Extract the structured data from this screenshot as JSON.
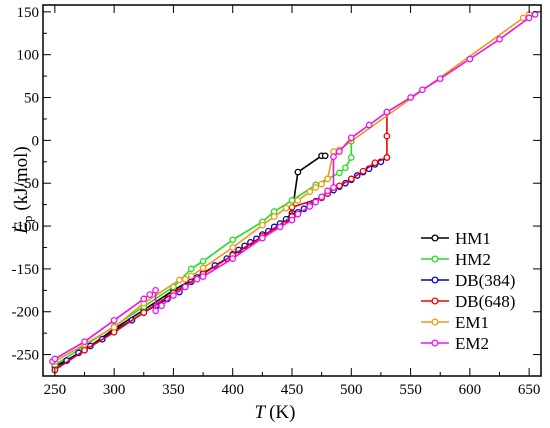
{
  "chart_data": {
    "type": "line",
    "title": "",
    "xlabel": "T",
    "xlabel_unit": "(K)",
    "ylabel": "E",
    "ylabel_sub": "p",
    "ylabel_unit": "(kJ/mol)",
    "xlim": [
      240,
      660
    ],
    "ylim": [
      -275,
      158
    ],
    "xticks": [
      250,
      300,
      350,
      400,
      450,
      500,
      550,
      600,
      650
    ],
    "yticks": [
      -250,
      -200,
      -150,
      -100,
      -50,
      0,
      50,
      100,
      150
    ],
    "legend_position": "bottom-right",
    "series": [
      {
        "name": "HM1",
        "color": "#000000",
        "points": [
          [
            250,
            -264
          ],
          [
            275,
            -245
          ],
          [
            300,
            -220
          ],
          [
            325,
            -198
          ],
          [
            350,
            -175
          ],
          [
            375,
            -155
          ],
          [
            400,
            -134
          ],
          [
            425,
            -112
          ],
          [
            440,
            -98
          ],
          [
            450,
            -85
          ],
          [
            455,
            -37
          ],
          [
            475,
            -18
          ],
          [
            478,
            -18
          ]
        ]
      },
      {
        "name": "HM2",
        "color": "#22dd22",
        "points": [
          [
            250,
            -262
          ],
          [
            275,
            -240
          ],
          [
            300,
            -217
          ],
          [
            325,
            -194
          ],
          [
            350,
            -171
          ],
          [
            365,
            -150
          ],
          [
            375,
            -141
          ],
          [
            400,
            -116
          ],
          [
            425,
            -95
          ],
          [
            435,
            -83
          ],
          [
            450,
            -70
          ],
          [
            470,
            -52
          ],
          [
            480,
            -45
          ],
          [
            490,
            -38
          ],
          [
            495,
            -32
          ],
          [
            500,
            -20
          ],
          [
            500,
            -1
          ]
        ]
      },
      {
        "name": "DB(384)",
        "color": "#0000cc",
        "points": [
          [
            250,
            -268
          ],
          [
            260,
            -257
          ],
          [
            270,
            -248
          ],
          [
            280,
            -240
          ],
          [
            290,
            -232
          ],
          [
            300,
            -222
          ],
          [
            315,
            -210
          ],
          [
            325,
            -201
          ],
          [
            335,
            -193
          ],
          [
            345,
            -185
          ],
          [
            355,
            -177
          ],
          [
            360,
            -171
          ],
          [
            365,
            -165
          ],
          [
            370,
            -160
          ],
          [
            375,
            -156
          ],
          [
            385,
            -146
          ],
          [
            395,
            -138
          ],
          [
            400,
            -133
          ],
          [
            405,
            -128
          ],
          [
            410,
            -123
          ],
          [
            415,
            -119
          ],
          [
            420,
            -115
          ],
          [
            425,
            -110
          ],
          [
            430,
            -106
          ],
          [
            435,
            -101
          ],
          [
            440,
            -97
          ],
          [
            445,
            -92
          ],
          [
            450,
            -88
          ],
          [
            455,
            -84
          ],
          [
            460,
            -80
          ],
          [
            465,
            -75
          ],
          [
            470,
            -71
          ],
          [
            475,
            -67
          ],
          [
            480,
            -62
          ],
          [
            485,
            -58
          ],
          [
            490,
            -54
          ],
          [
            495,
            -50
          ],
          [
            500,
            -46
          ],
          [
            505,
            -41
          ],
          [
            510,
            -37
          ],
          [
            515,
            -33
          ],
          [
            520,
            -28
          ],
          [
            525,
            -25
          ],
          [
            530,
            -20
          ]
        ]
      },
      {
        "name": "DB(648)",
        "color": "#ee0000",
        "points": [
          [
            250,
            -268
          ],
          [
            275,
            -245
          ],
          [
            300,
            -224
          ],
          [
            325,
            -201
          ],
          [
            350,
            -178
          ],
          [
            375,
            -156
          ],
          [
            400,
            -134
          ],
          [
            425,
            -112
          ],
          [
            450,
            -89
          ],
          [
            450,
            -78
          ],
          [
            475,
            -67
          ],
          [
            480,
            -62
          ],
          [
            490,
            -53
          ],
          [
            500,
            -45
          ],
          [
            510,
            -36
          ],
          [
            520,
            -26
          ],
          [
            530,
            -20
          ],
          [
            530,
            5
          ],
          [
            530,
            33
          ]
        ]
      },
      {
        "name": "EM1",
        "color": "#ee9911",
        "points": [
          [
            250,
            -258
          ],
          [
            275,
            -238
          ],
          [
            300,
            -218
          ],
          [
            325,
            -190
          ],
          [
            355,
            -163
          ],
          [
            360,
            -162
          ],
          [
            365,
            -158
          ],
          [
            375,
            -149
          ],
          [
            400,
            -125
          ],
          [
            425,
            -99
          ],
          [
            435,
            -89
          ],
          [
            445,
            -79
          ],
          [
            455,
            -70
          ],
          [
            465,
            -60
          ],
          [
            470,
            -55
          ],
          [
            475,
            -51
          ],
          [
            480,
            -45
          ],
          [
            485,
            -13
          ],
          [
            490,
            -11
          ],
          [
            645,
            143
          ],
          [
            650,
            147
          ]
        ]
      },
      {
        "name": "EM2",
        "color": "#ee11ee",
        "points": [
          [
            248,
            -258
          ],
          [
            250,
            -255
          ],
          [
            275,
            -235
          ],
          [
            300,
            -210
          ],
          [
            325,
            -185
          ],
          [
            330,
            -180
          ],
          [
            335,
            -175
          ],
          [
            335,
            -199
          ],
          [
            340,
            -193
          ],
          [
            350,
            -181
          ],
          [
            360,
            -171
          ],
          [
            370,
            -162
          ],
          [
            375,
            -159
          ],
          [
            400,
            -138
          ],
          [
            425,
            -114
          ],
          [
            440,
            -101
          ],
          [
            450,
            -93
          ],
          [
            455,
            -86
          ],
          [
            465,
            -77
          ],
          [
            470,
            -72
          ],
          [
            475,
            -66
          ],
          [
            480,
            -59
          ],
          [
            485,
            -55
          ],
          [
            485,
            -19
          ],
          [
            490,
            -13
          ],
          [
            500,
            3
          ],
          [
            515,
            18
          ],
          [
            530,
            33
          ],
          [
            550,
            50
          ],
          [
            560,
            59
          ],
          [
            575,
            72
          ],
          [
            600,
            95
          ],
          [
            625,
            118
          ],
          [
            650,
            143
          ],
          [
            655,
            147
          ]
        ]
      }
    ]
  }
}
